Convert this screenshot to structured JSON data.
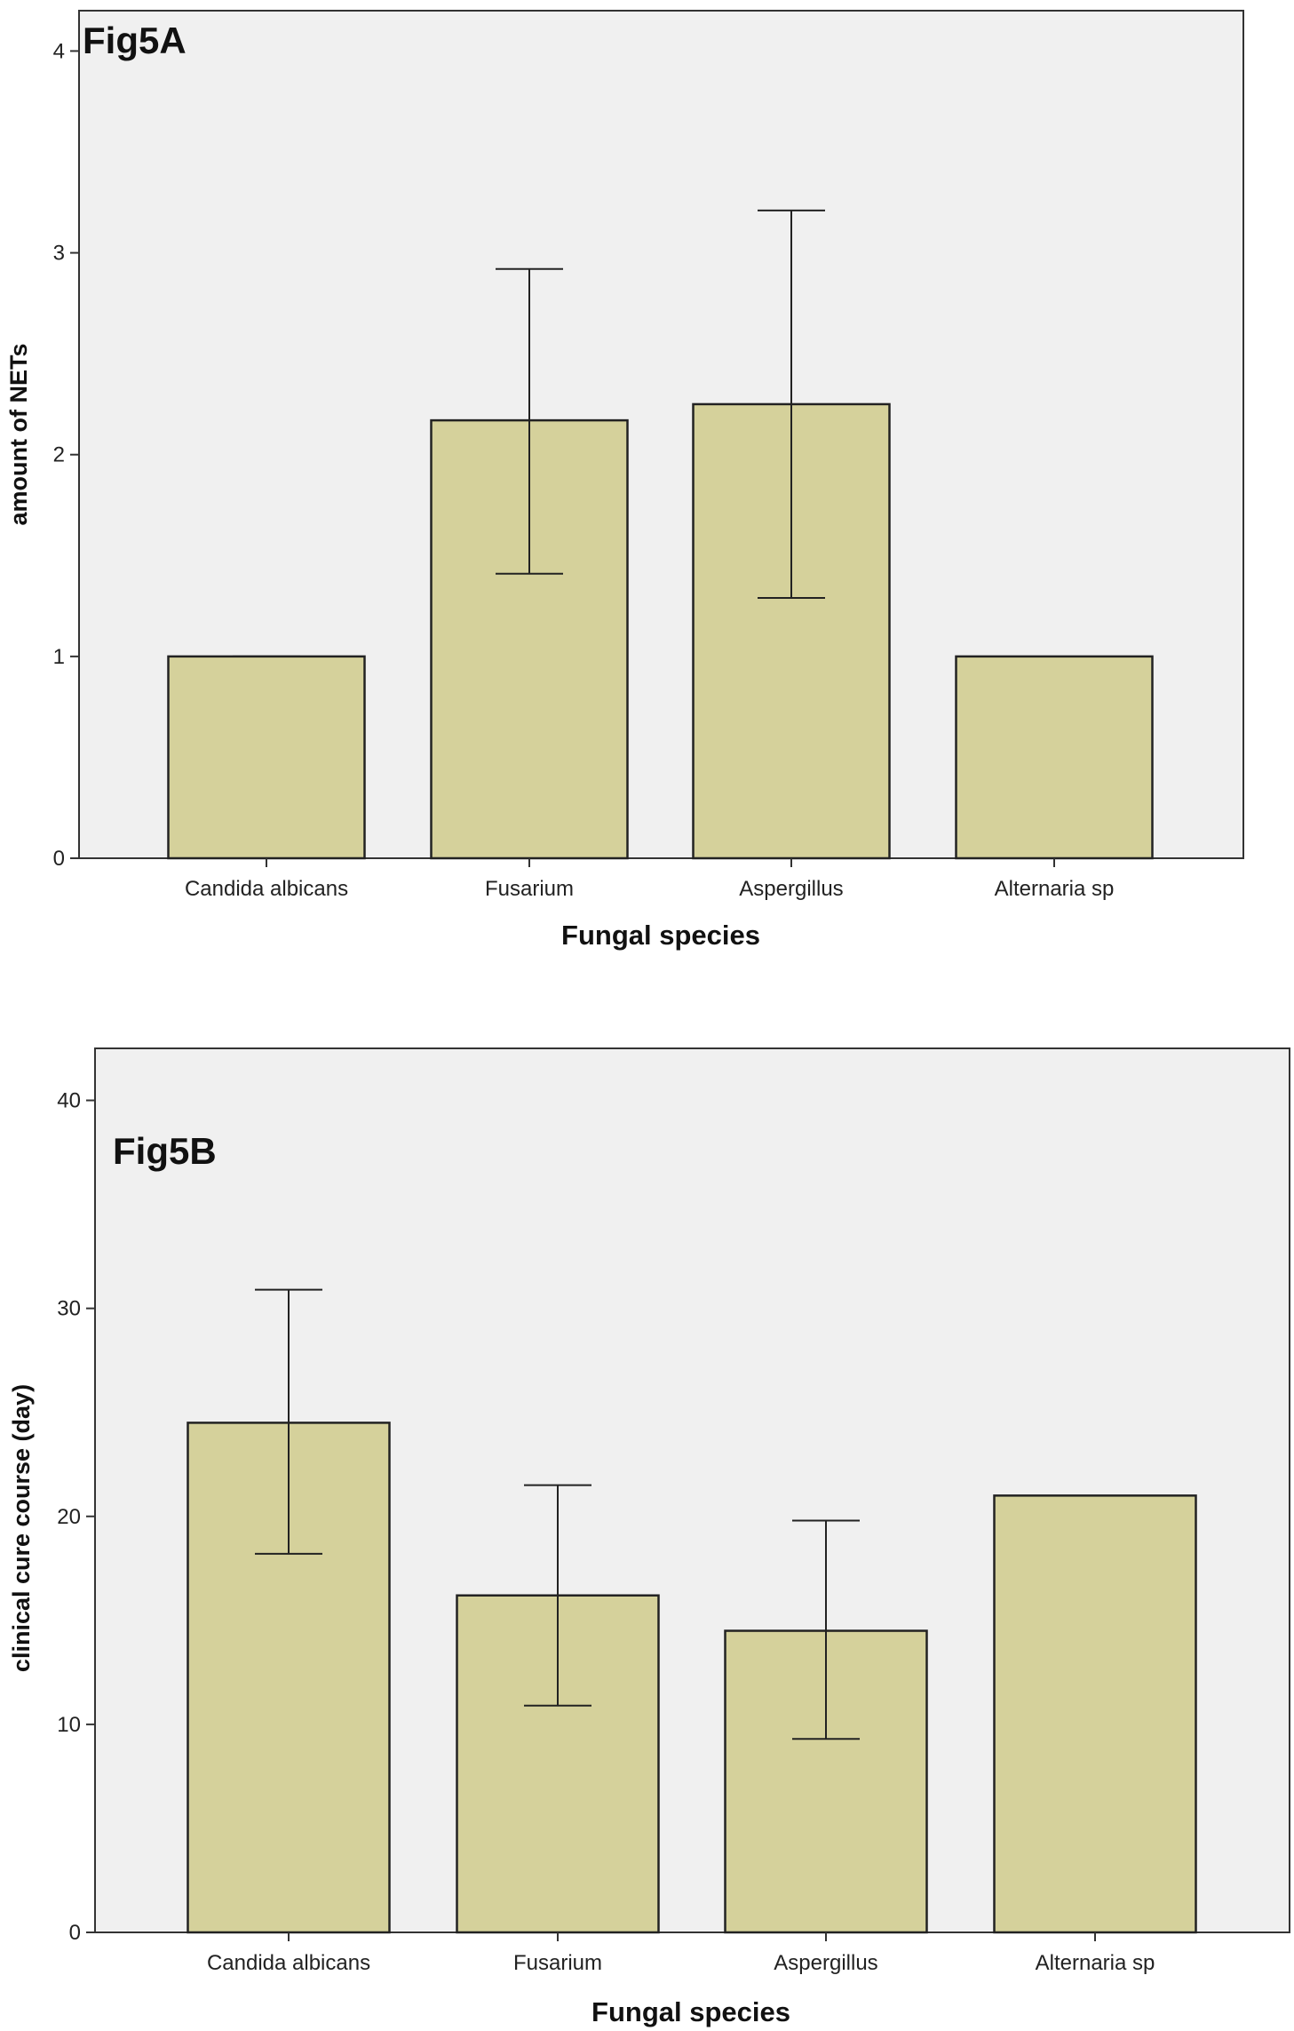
{
  "chart_data": [
    {
      "type": "bar",
      "title": "Fig5A",
      "xlabel": "Fungal species",
      "ylabel": "amount of NETs",
      "ylim": [
        0,
        4.2
      ],
      "yticks": [
        0,
        1,
        2,
        3,
        4
      ],
      "categories": [
        "Candida albicans",
        "Fusarium",
        "Aspergillus",
        "Alternaria sp"
      ],
      "values": [
        1.0,
        2.17,
        2.25,
        1.0
      ],
      "error_low": [
        1.0,
        1.41,
        1.29,
        null
      ],
      "error_high": [
        1.0,
        2.92,
        3.21,
        null
      ],
      "grid": false,
      "legend": "none"
    },
    {
      "type": "bar",
      "title": "Fig5B",
      "xlabel": "Fungal species",
      "ylabel": "clinical cure course (day)",
      "ylim": [
        0,
        42.5
      ],
      "yticks": [
        0,
        10,
        20,
        30,
        40
      ],
      "categories": [
        "Candida albicans",
        "Fusarium",
        "Aspergillus",
        "Alternaria sp"
      ],
      "values": [
        24.5,
        16.2,
        14.5,
        21.0
      ],
      "error_low": [
        18.2,
        10.9,
        9.3,
        null
      ],
      "error_high": [
        30.9,
        21.5,
        19.8,
        null
      ],
      "grid": false,
      "legend": "none"
    }
  ],
  "colors": {
    "bar_fill": "#d5d19b",
    "bar_stroke": "#222222",
    "plot_background": "#f0f0f0",
    "page_background": "#ffffff"
  }
}
